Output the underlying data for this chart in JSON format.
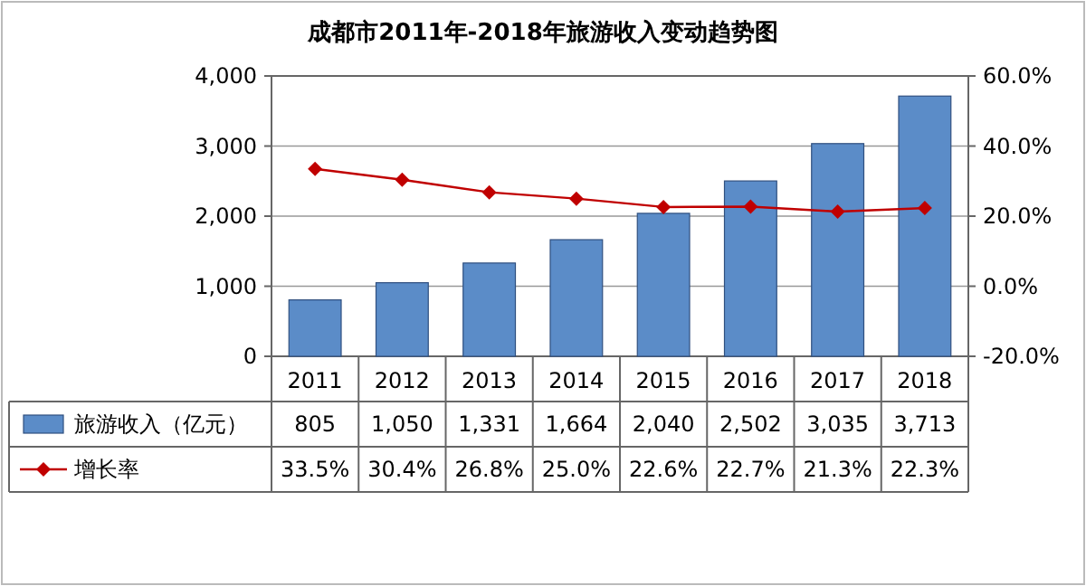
{
  "chart_data": {
    "type": "bar",
    "title": "成都市2011年-2018年旅游收入变动趋势图",
    "categories": [
      "2011",
      "2012",
      "2013",
      "2014",
      "2015",
      "2016",
      "2017",
      "2018"
    ],
    "series": [
      {
        "name": "旅游收入（亿元）",
        "color": "#5b8cc8",
        "values": [
          805,
          1050,
          1331,
          1664,
          2040,
          2502,
          3035,
          3713
        ],
        "value_labels": [
          "805",
          "1,050",
          "1,331",
          "1,664",
          "2,040",
          "2,502",
          "3,035",
          "3,713"
        ]
      },
      {
        "name": "增长率",
        "type": "line",
        "axis": "y2",
        "color": "#c00000",
        "marker": "diamond",
        "values": [
          33.5,
          30.4,
          26.8,
          25.0,
          22.6,
          22.7,
          21.3,
          22.3
        ],
        "value_labels": [
          "33.5%",
          "30.4%",
          "26.8%",
          "25.0%",
          "22.6%",
          "22.7%",
          "21.3%",
          "22.3%"
        ]
      }
    ],
    "ylim": [
      0,
      4000
    ],
    "yticks": [
      {
        "value": 0,
        "label": "0"
      },
      {
        "value": 1000,
        "label": "1,000"
      },
      {
        "value": 2000,
        "label": "2,000"
      },
      {
        "value": 3000,
        "label": "3,000"
      },
      {
        "value": 4000,
        "label": "4,000"
      }
    ],
    "y2lim": [
      -20,
      60
    ],
    "y2ticks": [
      {
        "value": -20,
        "label": "-20.0%"
      },
      {
        "value": 0,
        "label": "0.0%"
      },
      {
        "value": 20,
        "label": "20.0%"
      },
      {
        "value": 40,
        "label": "40.0%"
      },
      {
        "value": 60,
        "label": "60.0%"
      }
    ],
    "grid": "y",
    "legend": "bottom"
  }
}
